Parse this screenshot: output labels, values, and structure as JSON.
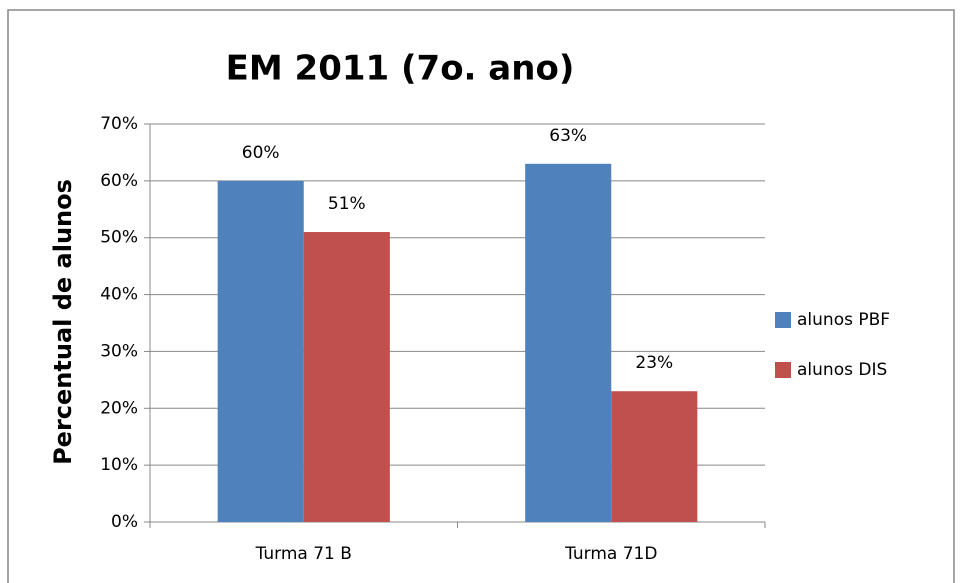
{
  "chart_data": {
    "type": "bar",
    "title": "EM 2011 (7o. ano)",
    "y_label": "Percentual de alunos",
    "categories": [
      "Turma 71 B",
      "Turma 71D"
    ],
    "series": [
      {
        "name": "alunos PBF",
        "color": "#4f81bd",
        "values": [
          60,
          63
        ],
        "value_labels": [
          "60%",
          "63%"
        ]
      },
      {
        "name": "alunos DIS",
        "color": "#c0504d",
        "values": [
          51,
          23
        ],
        "value_labels": [
          "51%",
          "23%"
        ]
      }
    ],
    "ylim": [
      0,
      70
    ],
    "yticks": [
      {
        "value": 0,
        "label": "0%"
      },
      {
        "value": 10,
        "label": "10%"
      },
      {
        "value": 20,
        "label": "20%"
      },
      {
        "value": 30,
        "label": "30%"
      },
      {
        "value": 40,
        "label": "40%"
      },
      {
        "value": 50,
        "label": "50%"
      },
      {
        "value": 60,
        "label": "60%"
      },
      {
        "value": 70,
        "label": "70%"
      }
    ],
    "grid": true,
    "legend": "right"
  }
}
